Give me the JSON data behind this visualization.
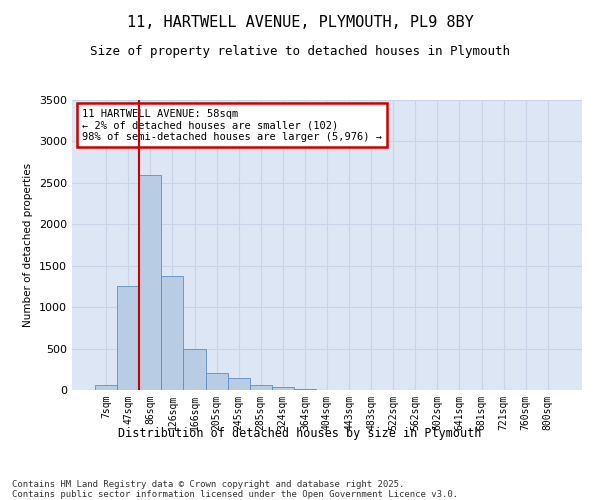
{
  "title": "11, HARTWELL AVENUE, PLYMOUTH, PL9 8BY",
  "subtitle": "Size of property relative to detached houses in Plymouth",
  "xlabel": "Distribution of detached houses by size in Plymouth",
  "ylabel": "Number of detached properties",
  "categories": [
    "7sqm",
    "47sqm",
    "86sqm",
    "126sqm",
    "166sqm",
    "205sqm",
    "245sqm",
    "285sqm",
    "324sqm",
    "364sqm",
    "404sqm",
    "443sqm",
    "483sqm",
    "522sqm",
    "562sqm",
    "602sqm",
    "641sqm",
    "681sqm",
    "721sqm",
    "760sqm",
    "800sqm"
  ],
  "values": [
    55,
    1250,
    2600,
    1380,
    490,
    210,
    140,
    65,
    40,
    10,
    2,
    0,
    0,
    0,
    0,
    0,
    0,
    0,
    0,
    0,
    0
  ],
  "bar_color": "#b8cce4",
  "bar_edge_color": "#5b8fc9",
  "grid_color": "#c8d4e8",
  "background_color": "#dce6f5",
  "vline_x_index": 1.5,
  "vline_color": "#cc0000",
  "annotation_text": "11 HARTWELL AVENUE: 58sqm\n← 2% of detached houses are smaller (102)\n98% of semi-detached houses are larger (5,976) →",
  "annotation_box_color": "#cc0000",
  "footer_text": "Contains HM Land Registry data © Crown copyright and database right 2025.\nContains public sector information licensed under the Open Government Licence v3.0.",
  "ylim": [
    0,
    3500
  ],
  "yticks": [
    0,
    500,
    1000,
    1500,
    2000,
    2500,
    3000,
    3500
  ]
}
